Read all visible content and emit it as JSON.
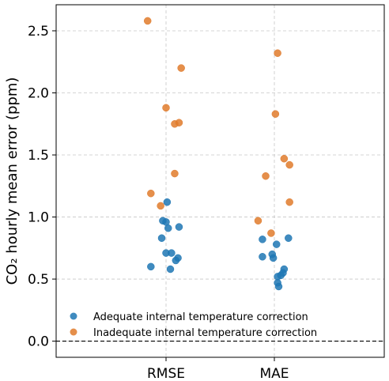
{
  "chart_data": {
    "type": "scatter",
    "categories": [
      "RMSE",
      "MAE"
    ],
    "ylabel": "CO₂ hourly mean error (ppm)",
    "xlabel": "",
    "ylim": [
      -0.13,
      2.71
    ],
    "yticks": [
      0.0,
      0.5,
      1.0,
      1.5,
      2.0,
      2.5
    ],
    "ytick_labels": [
      "0.0",
      "0.5",
      "1.0",
      "1.5",
      "2.0",
      "2.5"
    ],
    "grid": true,
    "reference_line_y": 0.0,
    "legend_position": "lower-left",
    "series": [
      {
        "name": "Adequate internal temperature correction",
        "color": "#1f77b4",
        "points": [
          {
            "category": "RMSE",
            "jitter": 0.01,
            "y": 1.12
          },
          {
            "category": "RMSE",
            "jitter": -0.03,
            "y": 0.97
          },
          {
            "category": "RMSE",
            "jitter": 0.0,
            "y": 0.96
          },
          {
            "category": "RMSE",
            "jitter": 0.02,
            "y": 0.91
          },
          {
            "category": "RMSE",
            "jitter": 0.12,
            "y": 0.92
          },
          {
            "category": "RMSE",
            "jitter": -0.04,
            "y": 0.83
          },
          {
            "category": "RMSE",
            "jitter": 0.0,
            "y": 0.71
          },
          {
            "category": "RMSE",
            "jitter": 0.05,
            "y": 0.71
          },
          {
            "category": "RMSE",
            "jitter": 0.11,
            "y": 0.67
          },
          {
            "category": "RMSE",
            "jitter": 0.09,
            "y": 0.65
          },
          {
            "category": "RMSE",
            "jitter": -0.14,
            "y": 0.6
          },
          {
            "category": "RMSE",
            "jitter": 0.04,
            "y": 0.58
          },
          {
            "category": "MAE",
            "jitter": -0.11,
            "y": 0.82
          },
          {
            "category": "MAE",
            "jitter": 0.13,
            "y": 0.83
          },
          {
            "category": "MAE",
            "jitter": 0.02,
            "y": 0.78
          },
          {
            "category": "MAE",
            "jitter": -0.11,
            "y": 0.68
          },
          {
            "category": "MAE",
            "jitter": -0.02,
            "y": 0.7
          },
          {
            "category": "MAE",
            "jitter": -0.01,
            "y": 0.67
          },
          {
            "category": "MAE",
            "jitter": 0.09,
            "y": 0.58
          },
          {
            "category": "MAE",
            "jitter": 0.08,
            "y": 0.55
          },
          {
            "category": "MAE",
            "jitter": 0.06,
            "y": 0.53
          },
          {
            "category": "MAE",
            "jitter": 0.03,
            "y": 0.52
          },
          {
            "category": "MAE",
            "jitter": 0.03,
            "y": 0.47
          },
          {
            "category": "MAE",
            "jitter": 0.04,
            "y": 0.44
          }
        ]
      },
      {
        "name": "Inadequate internal temperature correction",
        "color": "#e07b2c",
        "points": [
          {
            "category": "RMSE",
            "jitter": -0.17,
            "y": 2.58
          },
          {
            "category": "RMSE",
            "jitter": 0.14,
            "y": 2.2
          },
          {
            "category": "RMSE",
            "jitter": 0.0,
            "y": 1.88
          },
          {
            "category": "RMSE",
            "jitter": 0.12,
            "y": 1.76
          },
          {
            "category": "RMSE",
            "jitter": 0.08,
            "y": 1.75
          },
          {
            "category": "RMSE",
            "jitter": 0.08,
            "y": 1.35
          },
          {
            "category": "RMSE",
            "jitter": -0.14,
            "y": 1.19
          },
          {
            "category": "RMSE",
            "jitter": -0.05,
            "y": 1.09
          },
          {
            "category": "MAE",
            "jitter": 0.03,
            "y": 2.32
          },
          {
            "category": "MAE",
            "jitter": 0.01,
            "y": 1.83
          },
          {
            "category": "MAE",
            "jitter": 0.09,
            "y": 1.47
          },
          {
            "category": "MAE",
            "jitter": 0.14,
            "y": 1.42
          },
          {
            "category": "MAE",
            "jitter": -0.08,
            "y": 1.33
          },
          {
            "category": "MAE",
            "jitter": 0.14,
            "y": 1.12
          },
          {
            "category": "MAE",
            "jitter": -0.15,
            "y": 0.97
          },
          {
            "category": "MAE",
            "jitter": -0.03,
            "y": 0.87
          }
        ]
      }
    ]
  }
}
